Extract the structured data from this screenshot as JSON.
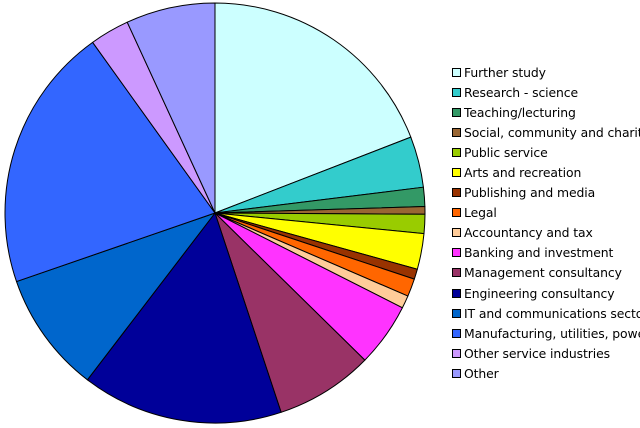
{
  "chart_data": {
    "type": "pie",
    "title": "",
    "legend_position": "right",
    "slices": [
      {
        "label": "Further study",
        "value": 19.5,
        "color": "#ccffff"
      },
      {
        "label": "Research - science",
        "value": 4.0,
        "color": "#33cccc"
      },
      {
        "label": "Teaching/lecturing",
        "value": 1.5,
        "color": "#339966"
      },
      {
        "label": "Social, community and charity",
        "value": 0.6,
        "color": "#996633"
      },
      {
        "label": "Public service",
        "value": 1.5,
        "color": "#99cc00"
      },
      {
        "label": "Arts and recreation",
        "value": 2.8,
        "color": "#ffff00"
      },
      {
        "label": "Publishing and media",
        "value": 0.8,
        "color": "#993300"
      },
      {
        "label": "Legal",
        "value": 1.4,
        "color": "#ff6600"
      },
      {
        "label": "Accountancy and tax",
        "value": 1.0,
        "color": "#ffcc99"
      },
      {
        "label": "Banking and investment",
        "value": 5.0,
        "color": "#ff33ff"
      },
      {
        "label": "Management consultancy",
        "value": 7.7,
        "color": "#993366"
      },
      {
        "label": "Engineering consultancy",
        "value": 15.8,
        "color": "#000099"
      },
      {
        "label": "IT and communications sector",
        "value": 9.5,
        "color": "#0066cc"
      },
      {
        "label": "Manufacturing, utilities, power",
        "value": 20.8,
        "color": "#3366ff"
      },
      {
        "label": "Other service industries",
        "value": 3.1,
        "color": "#cc99ff"
      },
      {
        "label": "Other",
        "value": 7.0,
        "color": "#9999ff"
      }
    ]
  }
}
